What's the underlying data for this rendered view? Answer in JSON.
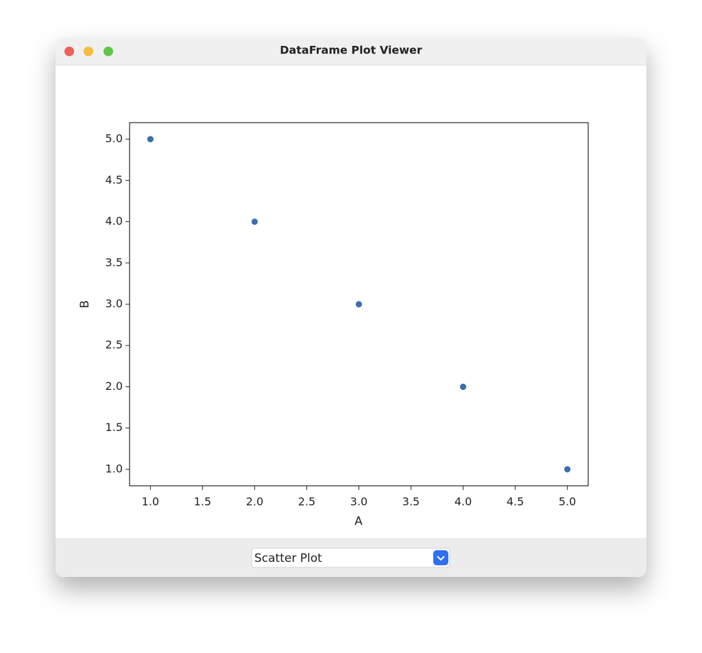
{
  "window": {
    "title": "DataFrame Plot Viewer"
  },
  "chart_data": {
    "type": "scatter",
    "xlabel": "A",
    "ylabel": "B",
    "x": [
      1,
      2,
      3,
      4,
      5
    ],
    "values": [
      5,
      4,
      3,
      2,
      1
    ],
    "color": "#3b6fb0",
    "xlim": [
      0.8,
      5.2
    ],
    "ylim": [
      0.8,
      5.2
    ],
    "xticks": [
      {
        "value": 1,
        "label": "1.0"
      },
      1.5,
      {
        "value": 2,
        "label": "2.0"
      },
      2.5,
      {
        "value": 3,
        "label": "3.0"
      },
      3.5,
      {
        "value": 4,
        "label": "4.0"
      },
      4.5,
      {
        "value": 5,
        "label": "5.0"
      }
    ],
    "yticks": [
      {
        "value": 1,
        "label": "1.0"
      },
      1.5,
      {
        "value": 2,
        "label": "2.0"
      },
      2.5,
      {
        "value": 3,
        "label": "3.0"
      },
      3.5,
      {
        "value": 4,
        "label": "4.0"
      },
      4.5,
      {
        "value": 5,
        "label": "5.0"
      }
    ]
  },
  "controls": {
    "plot_type": "Scatter Plot"
  }
}
